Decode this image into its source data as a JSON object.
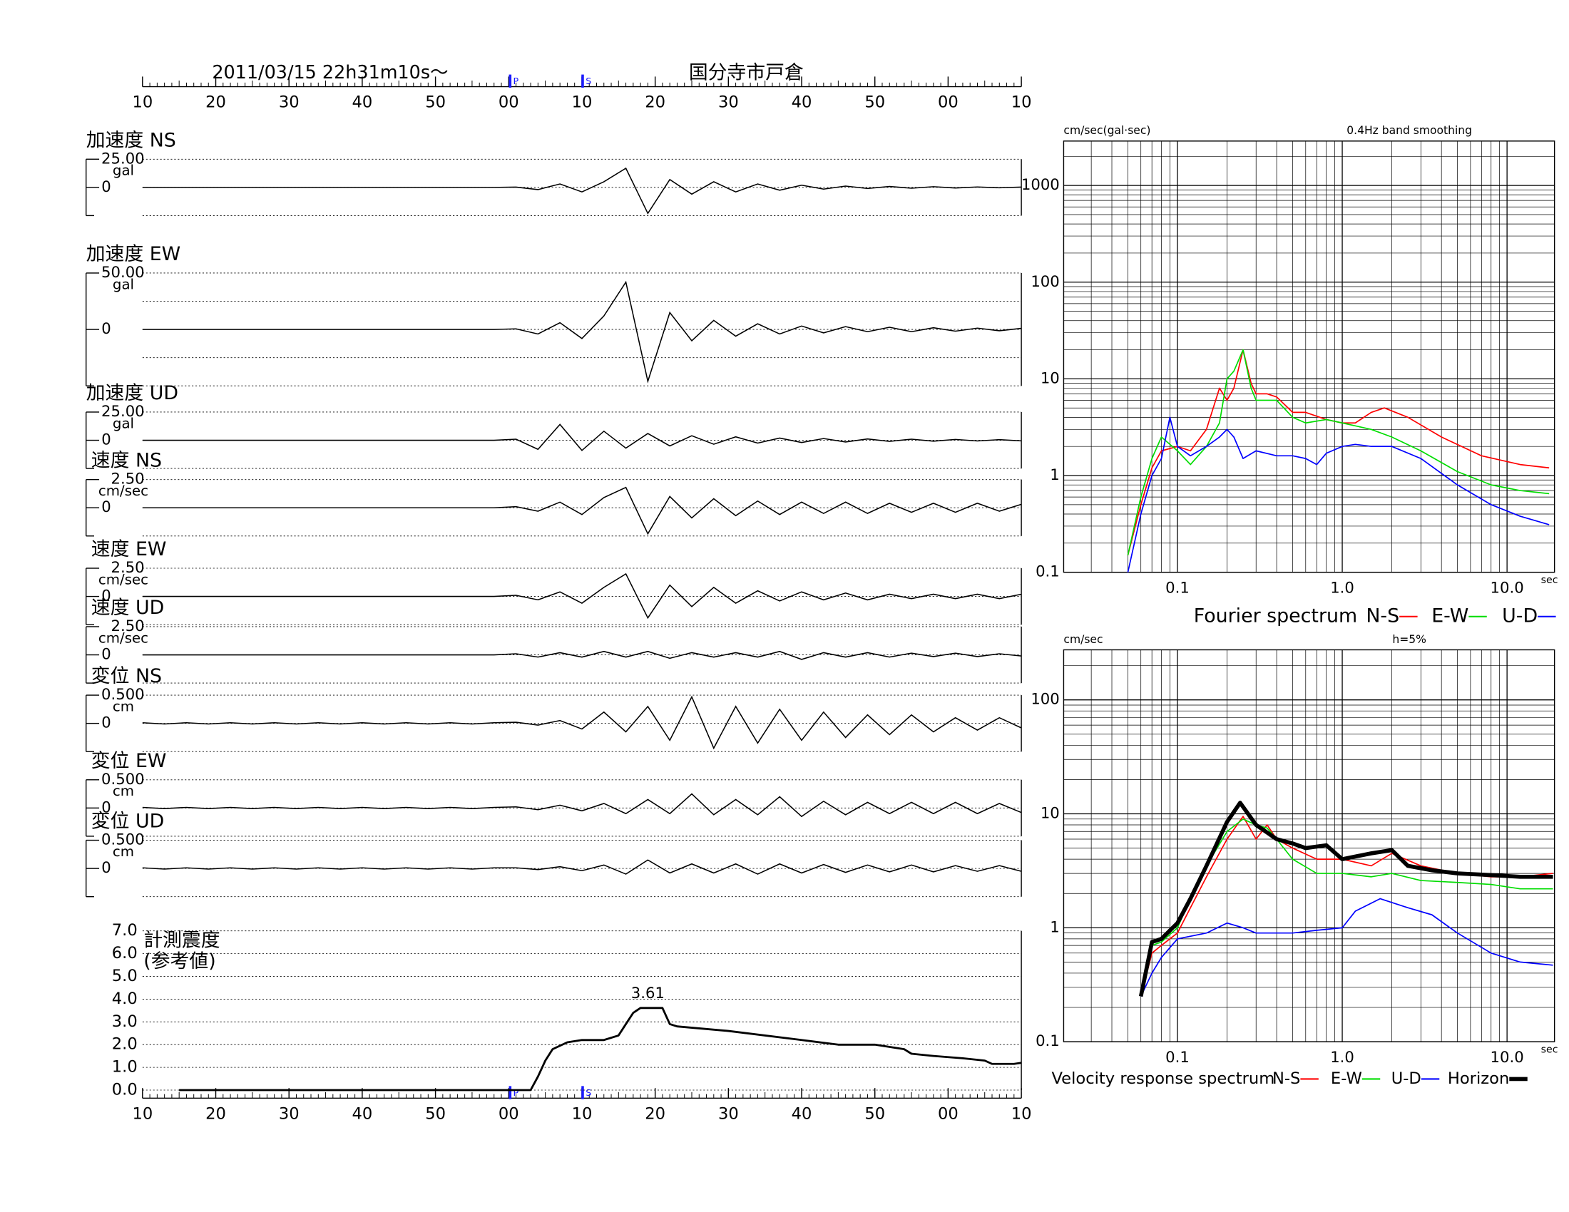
{
  "chart_data": [
    {
      "type": "waveform",
      "title": "2011/03/15  22h31m10s〜",
      "subtitle": "国分寺市戸倉",
      "xlim": [
        0,
        120
      ],
      "xticks": [
        {
          "value": 0,
          "label": "10"
        },
        {
          "value": 10,
          "label": "20"
        },
        {
          "value": 20,
          "label": "30"
        },
        {
          "value": 30,
          "label": "40"
        },
        {
          "value": 40,
          "label": "50"
        },
        {
          "value": 50,
          "label": "00"
        },
        {
          "value": 60,
          "label": "10"
        },
        {
          "value": 70,
          "label": "20"
        },
        {
          "value": 80,
          "label": "30"
        },
        {
          "value": 90,
          "label": "40"
        },
        {
          "value": 100,
          "label": "50"
        },
        {
          "value": 110,
          "label": "00"
        },
        {
          "value": 120,
          "label": "10"
        }
      ],
      "markers": [
        {
          "label": "P",
          "value": 50.2
        },
        {
          "label": "S",
          "value": 60.1
        }
      ],
      "x": [
        0,
        3,
        6,
        9,
        12,
        15,
        18,
        21,
        24,
        27,
        30,
        33,
        36,
        39,
        42,
        45,
        48,
        51,
        54,
        57,
        60,
        63,
        66,
        69,
        72,
        75,
        78,
        81,
        84,
        87,
        90,
        93,
        96,
        99,
        102,
        105,
        108,
        111,
        114,
        117,
        120
      ],
      "panels": [
        {
          "name": "加速度 NS",
          "unit": "gal",
          "ylim": [
            -25,
            25
          ],
          "yticks": [
            {
              "value": 25,
              "label": "25.00"
            },
            0
          ],
          "values": [
            0,
            0,
            0,
            0,
            0,
            0,
            0,
            0,
            0,
            0,
            0,
            0,
            0,
            0,
            0,
            0,
            0,
            0.3,
            -2,
            3,
            -4,
            5,
            17,
            -23,
            7,
            -6,
            5,
            -4,
            3,
            -2.5,
            2,
            -1.5,
            1.2,
            -1,
            0.8,
            -0.7,
            0.6,
            -0.5,
            0.4,
            -0.4,
            0.3
          ]
        },
        {
          "name": "加速度 EW",
          "unit": "gal",
          "ylim": [
            -50,
            50
          ],
          "yticks": [
            {
              "value": 50,
              "label": "50.00"
            },
            0
          ],
          "values": [
            0,
            0,
            0,
            0,
            0,
            0,
            0,
            0,
            0,
            0,
            0,
            0,
            0,
            0,
            0,
            0,
            0,
            0.5,
            -4,
            6,
            -8,
            12,
            42,
            -46,
            15,
            -10,
            8,
            -6,
            5,
            -4,
            3,
            -3,
            2.5,
            -2,
            2,
            -2,
            1.5,
            -1.5,
            1.2,
            -1.2,
            1
          ]
        },
        {
          "name": "加速度 UD",
          "unit": "gal",
          "ylim": [
            -25,
            25
          ],
          "yticks": [
            {
              "value": 25,
              "label": "25.00"
            },
            0
          ],
          "values": [
            0,
            0,
            0,
            0,
            0,
            0,
            0,
            0,
            0,
            0,
            0,
            0,
            0,
            0,
            0,
            0,
            0,
            1,
            -8,
            14,
            -9,
            8,
            -7,
            6,
            -5,
            4,
            -3.5,
            3,
            -2.5,
            2,
            -2,
            1.5,
            -1.5,
            1.2,
            -1,
            1,
            -0.8,
            0.7,
            -0.6,
            0.5,
            -0.5
          ]
        },
        {
          "name": "速度 NS",
          "unit": "cm/sec",
          "ylim": [
            -2.5,
            2.5
          ],
          "yticks": [
            {
              "value": 2.5,
              "label": "2.50"
            },
            0
          ],
          "values": [
            0,
            0,
            0,
            0,
            0,
            0,
            0,
            0,
            0,
            0,
            0,
            0,
            0,
            0,
            0,
            0,
            0,
            0.1,
            -0.3,
            0.5,
            -0.6,
            0.9,
            1.8,
            -2.3,
            1.0,
            -0.9,
            0.8,
            -0.7,
            0.6,
            -0.6,
            0.5,
            -0.5,
            0.5,
            -0.5,
            0.4,
            -0.4,
            0.4,
            -0.4,
            0.4,
            -0.3,
            0.3
          ]
        },
        {
          "name": "速度 EW",
          "unit": "cm/sec",
          "ylim": [
            -2.5,
            2.5
          ],
          "yticks": [
            {
              "value": 2.5,
              "label": "2.50"
            },
            0
          ],
          "values": [
            0,
            0,
            0,
            0,
            0,
            0,
            0,
            0,
            0,
            0,
            0,
            0,
            0,
            0,
            0,
            0,
            0,
            0.1,
            -0.3,
            0.4,
            -0.6,
            0.8,
            2.0,
            -1.9,
            1.0,
            -0.9,
            0.8,
            -0.6,
            0.5,
            -0.4,
            0.4,
            -0.3,
            0.3,
            -0.3,
            0.2,
            -0.2,
            0.2,
            -0.2,
            0.2,
            -0.2,
            0.2
          ]
        },
        {
          "name": "速度 UD",
          "unit": "cm/sec",
          "ylim": [
            -2.5,
            2.5
          ],
          "yticks": [
            {
              "value": 2.5,
              "label": "2.50"
            },
            0
          ],
          "values": [
            0,
            0,
            0,
            0,
            0,
            0,
            0,
            0,
            0,
            0,
            0,
            0,
            0,
            0,
            0,
            0,
            0,
            0.1,
            -0.2,
            0.2,
            -0.2,
            0.3,
            -0.2,
            0.3,
            -0.3,
            0.2,
            -0.2,
            0.2,
            -0.2,
            0.3,
            -0.4,
            0.2,
            -0.2,
            0.2,
            -0.2,
            0.15,
            -0.15,
            0.15,
            -0.15,
            0.1,
            -0.1
          ]
        },
        {
          "name": "変位 NS",
          "unit": "cm",
          "ylim": [
            -0.5,
            0.5
          ],
          "yticks": [
            {
              "value": 0.5,
              "label": "0.500"
            },
            0
          ],
          "values": [
            0.01,
            -0.01,
            0.01,
            -0.01,
            0.01,
            -0.01,
            0.01,
            -0.01,
            0.01,
            -0.01,
            0.01,
            -0.01,
            0.01,
            -0.01,
            0.01,
            -0.01,
            0.01,
            0.02,
            -0.03,
            0.05,
            -0.1,
            0.2,
            -0.15,
            0.3,
            -0.3,
            0.47,
            -0.44,
            0.3,
            -0.35,
            0.25,
            -0.3,
            0.2,
            -0.25,
            0.15,
            -0.2,
            0.15,
            -0.15,
            0.1,
            -0.12,
            0.1,
            -0.08
          ]
        },
        {
          "name": "変位 EW",
          "unit": "cm",
          "ylim": [
            -0.5,
            0.5
          ],
          "yticks": [
            {
              "value": 0.5,
              "label": "0.500"
            },
            0
          ],
          "values": [
            0.01,
            -0.01,
            0.01,
            -0.01,
            0.01,
            -0.01,
            0.01,
            -0.01,
            0.01,
            -0.01,
            0.01,
            -0.01,
            0.01,
            -0.01,
            0.01,
            -0.01,
            0.01,
            0.02,
            -0.03,
            0.05,
            -0.05,
            0.08,
            -0.1,
            0.15,
            -0.1,
            0.25,
            -0.12,
            0.15,
            -0.12,
            0.2,
            -0.15,
            0.12,
            -0.12,
            0.1,
            -0.1,
            0.1,
            -0.1,
            0.1,
            -0.1,
            0.08,
            -0.08
          ]
        },
        {
          "name": "変位 UD",
          "unit": "cm",
          "ylim": [
            -0.5,
            0.5
          ],
          "yticks": [
            {
              "value": 0.5,
              "label": "0.500"
            },
            0
          ],
          "values": [
            0.01,
            -0.01,
            0.01,
            -0.01,
            0.01,
            -0.01,
            0.01,
            -0.01,
            0.01,
            -0.01,
            0.01,
            -0.01,
            0.01,
            -0.01,
            0.01,
            -0.01,
            0.01,
            0.01,
            -0.02,
            0.03,
            -0.04,
            0.06,
            -0.1,
            0.15,
            -0.08,
            0.08,
            -0.08,
            0.08,
            -0.1,
            0.08,
            -0.08,
            0.07,
            -0.07,
            0.06,
            -0.06,
            0.06,
            -0.06,
            0.05,
            -0.05,
            0.05,
            -0.05
          ]
        }
      ]
    },
    {
      "type": "line",
      "title": "計測震度",
      "subtitle": "(参考値)",
      "x": [
        5,
        53,
        54,
        55,
        56,
        58,
        60,
        63,
        65,
        66,
        67,
        68,
        71,
        72,
        73,
        80,
        90,
        95,
        100,
        104,
        105,
        108,
        112,
        115,
        116,
        119,
        120
      ],
      "values": [
        0,
        0,
        0.6,
        1.3,
        1.8,
        2.1,
        2.2,
        2.2,
        2.4,
        2.9,
        3.4,
        3.61,
        3.61,
        2.9,
        2.8,
        2.6,
        2.2,
        2.0,
        2.0,
        1.8,
        1.6,
        1.5,
        1.4,
        1.3,
        1.15,
        1.15,
        1.2
      ],
      "ylim": [
        0,
        7
      ],
      "yticks": [
        {
          "value": 0,
          "label": "0.0"
        },
        {
          "value": 1,
          "label": "1.0"
        },
        {
          "value": 2,
          "label": "2.0"
        },
        {
          "value": 3,
          "label": "3.0"
        },
        {
          "value": 4,
          "label": "4.0"
        },
        {
          "value": 5,
          "label": "5.0"
        },
        {
          "value": 6,
          "label": "6.0"
        },
        {
          "value": 7,
          "label": "7.0"
        }
      ],
      "grid": true,
      "annotations": [
        {
          "x": 69,
          "value": 3.61
        }
      ]
    },
    {
      "type": "loglog",
      "y_label": "cm/sec(gal·sec)",
      "note": "0.4Hz band smoothing",
      "x_label": "sec",
      "legend_title": "Fourier spectrum",
      "xlim": [
        0.0204,
        19.4
      ],
      "ylim": [
        0.1,
        2880
      ],
      "xticks": [
        0.1,
        {
          "value": 1,
          "label": "1.0"
        },
        {
          "value": 10,
          "label": "10.0"
        }
      ],
      "yticks": [
        0.1,
        1,
        10,
        100,
        1000
      ],
      "grid": true,
      "series": [
        {
          "name": "N-S",
          "color": "#ff0000",
          "x": [
            0.05,
            0.06,
            0.07,
            0.08,
            0.1,
            0.12,
            0.15,
            0.18,
            0.2,
            0.22,
            0.25,
            0.28,
            0.3,
            0.35,
            0.4,
            0.5,
            0.6,
            0.8,
            1.0,
            1.2,
            1.5,
            1.8,
            2.5,
            4,
            7,
            12,
            18
          ],
          "values": [
            0.15,
            0.5,
            1.2,
            1.8,
            2.0,
            1.8,
            3,
            8,
            6,
            8,
            20,
            9,
            7,
            7,
            6.5,
            4.5,
            4.5,
            3.8,
            3.5,
            3.5,
            4.5,
            5,
            4,
            2.5,
            1.6,
            1.3,
            1.2
          ]
        },
        {
          "name": "E-W",
          "color": "#00dd00",
          "x": [
            0.05,
            0.06,
            0.07,
            0.08,
            0.1,
            0.12,
            0.15,
            0.18,
            0.2,
            0.22,
            0.25,
            0.28,
            0.3,
            0.4,
            0.5,
            0.6,
            0.8,
            1.0,
            1.5,
            2,
            3,
            5,
            8,
            12,
            18
          ],
          "values": [
            0.15,
            0.6,
            1.5,
            2.5,
            1.8,
            1.3,
            2,
            3.5,
            10,
            12,
            20,
            8,
            6,
            6,
            4,
            3.5,
            3.8,
            3.5,
            3,
            2.5,
            1.8,
            1.1,
            0.8,
            0.7,
            0.65
          ]
        },
        {
          "name": "U-D",
          "color": "#0000ff",
          "x": [
            0.05,
            0.06,
            0.07,
            0.08,
            0.09,
            0.1,
            0.12,
            0.15,
            0.18,
            0.2,
            0.22,
            0.25,
            0.3,
            0.4,
            0.5,
            0.6,
            0.7,
            0.8,
            1.0,
            1.2,
            1.5,
            2,
            3,
            5,
            8,
            12,
            18
          ],
          "values": [
            0.1,
            0.4,
            1.0,
            1.5,
            4,
            2,
            1.6,
            2,
            2.5,
            3,
            2.5,
            1.5,
            1.8,
            1.6,
            1.6,
            1.5,
            1.3,
            1.7,
            2,
            2.1,
            2,
            2,
            1.5,
            0.8,
            0.5,
            0.38,
            0.31
          ]
        }
      ]
    },
    {
      "type": "loglog",
      "y_label": "cm/sec",
      "note": "h=5%",
      "x_label": "sec",
      "legend_title": "Velocity response spectrum",
      "xlim": [
        0.0204,
        19.4
      ],
      "ylim": [
        0.1,
        275
      ],
      "xticks": [
        0.1,
        {
          "value": 1,
          "label": "1.0"
        },
        {
          "value": 10,
          "label": "10.0"
        }
      ],
      "yticks": [
        0.1,
        1,
        10,
        100
      ],
      "grid": true,
      "series": [
        {
          "name": "N-S",
          "color": "#ff0000",
          "x": [
            0.06,
            0.07,
            0.08,
            0.1,
            0.12,
            0.15,
            0.2,
            0.25,
            0.3,
            0.35,
            0.4,
            0.5,
            0.7,
            1,
            1.5,
            2,
            3,
            5,
            8,
            12,
            19
          ],
          "values": [
            0.25,
            0.6,
            0.7,
            0.9,
            1.5,
            2.8,
            6,
            9.5,
            6,
            8,
            6,
            5,
            4,
            4,
            3.5,
            4.5,
            3.5,
            3,
            2.8,
            2.8,
            3
          ]
        },
        {
          "name": "E-W",
          "color": "#00dd00",
          "x": [
            0.06,
            0.07,
            0.08,
            0.1,
            0.12,
            0.15,
            0.2,
            0.25,
            0.3,
            0.35,
            0.4,
            0.5,
            0.7,
            1,
            1.5,
            2,
            3,
            5,
            8,
            12,
            19
          ],
          "values": [
            0.25,
            0.7,
            0.75,
            1,
            1.8,
            3.5,
            7,
            9,
            8,
            7.5,
            6,
            4,
            3,
            3,
            2.8,
            3,
            2.6,
            2.5,
            2.4,
            2.2,
            2.2
          ]
        },
        {
          "name": "U-D",
          "color": "#0000ff",
          "x": [
            0.06,
            0.07,
            0.08,
            0.1,
            0.15,
            0.2,
            0.25,
            0.3,
            0.5,
            0.7,
            1,
            1.2,
            1.7,
            2.5,
            3.5,
            5,
            8,
            12,
            19
          ],
          "values": [
            0.25,
            0.4,
            0.55,
            0.8,
            0.9,
            1.1,
            1,
            0.9,
            0.9,
            0.95,
            1,
            1.4,
            1.8,
            1.5,
            1.3,
            0.9,
            0.6,
            0.5,
            0.47
          ]
        },
        {
          "name": "Horizon",
          "color": "#000000",
          "width": 4,
          "x": [
            0.06,
            0.07,
            0.08,
            0.1,
            0.12,
            0.15,
            0.2,
            0.24,
            0.3,
            0.4,
            0.5,
            0.6,
            0.8,
            1,
            1.5,
            2,
            2.5,
            3.5,
            5,
            8,
            12,
            19
          ],
          "values": [
            0.25,
            0.75,
            0.8,
            1.1,
            1.8,
            3.5,
            8.5,
            12.5,
            8,
            6,
            5.5,
            5,
            5.3,
            4,
            4.5,
            4.8,
            3.5,
            3.2,
            3,
            2.9,
            2.8,
            2.8
          ]
        }
      ]
    }
  ]
}
